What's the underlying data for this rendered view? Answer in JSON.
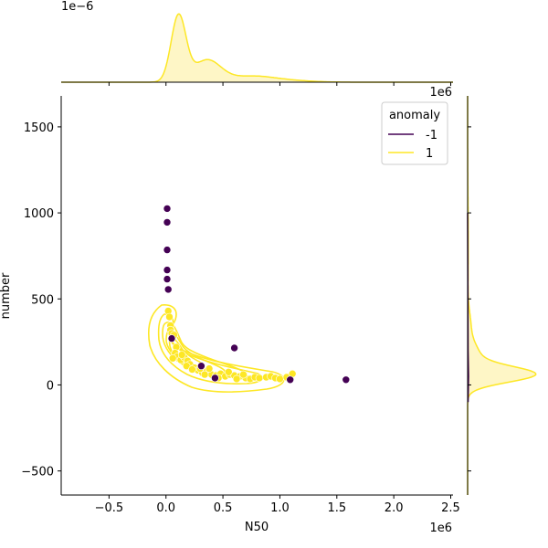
{
  "chart_data": {
    "type": "scatter",
    "xlabel": "N50",
    "ylabel": "number",
    "x_offset_label": "1e6",
    "y_offset_label": "1e6",
    "top_marginal_offset_label": "1e−6",
    "xlim": [
      -0.92,
      2.52
    ],
    "ylim": [
      -640,
      1680
    ],
    "x_ticks": [
      {
        "value": -0.5,
        "label": "−0.5"
      },
      {
        "value": 0.0,
        "label": "0.0"
      },
      {
        "value": 0.5,
        "label": "0.5"
      },
      {
        "value": 1.0,
        "label": "1.0"
      },
      {
        "value": 1.5,
        "label": "1.5"
      },
      {
        "value": 2.0,
        "label": "2.0"
      },
      {
        "value": 2.5,
        "label": "2.5"
      }
    ],
    "y_ticks": [
      {
        "value": -500,
        "label": "−500"
      },
      {
        "value": 0,
        "label": "0"
      },
      {
        "value": 500,
        "label": "500"
      },
      {
        "value": 1000,
        "label": "1000"
      },
      {
        "value": 1500,
        "label": "1500"
      }
    ],
    "legend": {
      "title": "anomaly",
      "placement": "top-right",
      "entries": [
        {
          "label": "-1",
          "color": "#440154"
        },
        {
          "label": "1",
          "color": "#fde725"
        }
      ]
    },
    "colors": {
      "anomaly": "#440154",
      "normal": "#fde725",
      "kde_fill": "#fef6c6"
    },
    "series": [
      {
        "name": "-1",
        "points": [
          [
            0.01,
            1025
          ],
          [
            0.01,
            945
          ],
          [
            0.01,
            785
          ],
          [
            0.01,
            668
          ],
          [
            0.01,
            615
          ],
          [
            0.02,
            555
          ],
          [
            0.05,
            270
          ],
          [
            0.31,
            110
          ],
          [
            0.43,
            40
          ],
          [
            0.6,
            215
          ],
          [
            1.09,
            30
          ],
          [
            1.58,
            30
          ]
        ]
      },
      {
        "name": "1",
        "points": [
          [
            0.02,
            430
          ],
          [
            0.03,
            395
          ],
          [
            0.04,
            345
          ],
          [
            0.04,
            320
          ],
          [
            0.05,
            300
          ],
          [
            0.07,
            290
          ],
          [
            0.09,
            220
          ],
          [
            0.08,
            185
          ],
          [
            0.1,
            165
          ],
          [
            0.06,
            155
          ],
          [
            0.13,
            145
          ],
          [
            0.16,
            160
          ],
          [
            0.19,
            140
          ],
          [
            0.21,
            120
          ],
          [
            0.25,
            100
          ],
          [
            0.28,
            85
          ],
          [
            0.32,
            70
          ],
          [
            0.36,
            80
          ],
          [
            0.4,
            60
          ],
          [
            0.44,
            55
          ],
          [
            0.48,
            65
          ],
          [
            0.52,
            50
          ],
          [
            0.56,
            60
          ],
          [
            0.6,
            55
          ],
          [
            0.65,
            50
          ],
          [
            0.7,
            40
          ],
          [
            0.74,
            35
          ],
          [
            0.78,
            45
          ],
          [
            0.82,
            40
          ],
          [
            0.88,
            45
          ],
          [
            0.92,
            50
          ],
          [
            0.96,
            40
          ],
          [
            1.0,
            35
          ],
          [
            1.06,
            45
          ],
          [
            1.11,
            65
          ],
          [
            0.14,
            175
          ],
          [
            0.18,
            110
          ],
          [
            0.23,
            90
          ],
          [
            0.3,
            95
          ],
          [
            0.34,
            60
          ],
          [
            0.38,
            95
          ],
          [
            0.46,
            40
          ],
          [
            0.55,
            75
          ],
          [
            0.62,
            35
          ],
          [
            0.68,
            60
          ]
        ]
      }
    ]
  }
}
